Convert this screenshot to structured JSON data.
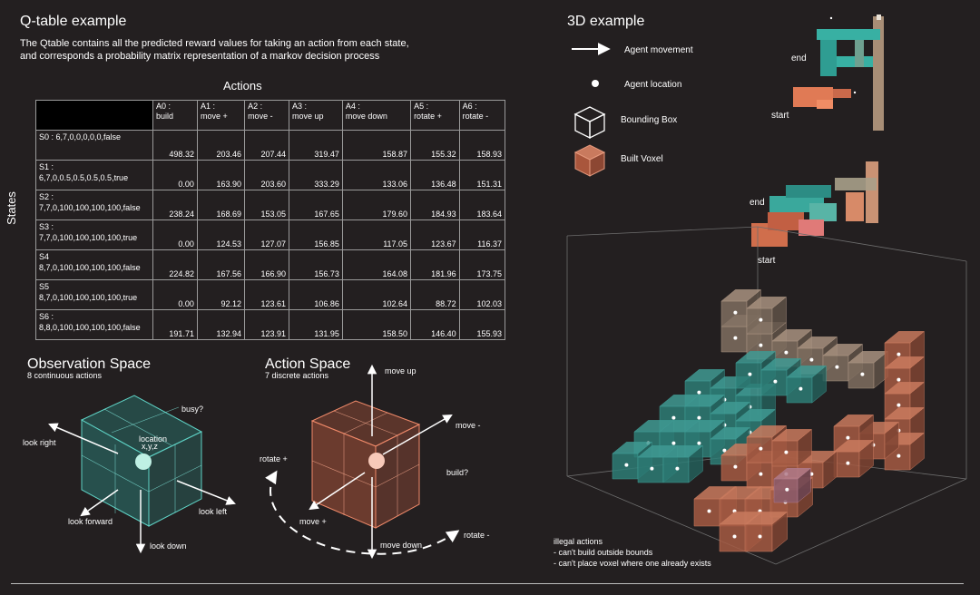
{
  "qtable": {
    "title": "Q-table example",
    "description_line1": "The Qtable contains all the predicted reward values for taking an action from each state,",
    "description_line2": "and corresponds a probability matrix representation of a markov decision process",
    "actions_label": "Actions",
    "states_label": "States",
    "columns": [
      {
        "id": "A0 :",
        "name": "build"
      },
      {
        "id": "A1 :",
        "name": "move +"
      },
      {
        "id": "A2 :",
        "name": "move -"
      },
      {
        "id": "A3 :",
        "name": "move up"
      },
      {
        "id": "A4 :",
        "name": "move down"
      },
      {
        "id": "A5 :",
        "name": "rotate +"
      },
      {
        "id": "A6 :",
        "name": "rotate -"
      }
    ],
    "rows": [
      {
        "line1": "S0 : 6,7,0,0,0,0,0,false",
        "line2": "",
        "values": [
          "498.32",
          "203.46",
          "207.44",
          "319.47",
          "158.87",
          "155.32",
          "158.93"
        ]
      },
      {
        "line1": "S1 :",
        "line2": "6,7,0,0.5,0.5,0.5,0.5,true",
        "values": [
          "0.00",
          "163.90",
          "203.60",
          "333.29",
          "133.06",
          "136.48",
          "151.31"
        ]
      },
      {
        "line1": "S2 :",
        "line2": "7,7,0,100,100,100,100,false",
        "values": [
          "238.24",
          "168.69",
          "153.05",
          "167.65",
          "179.60",
          "184.93",
          "183.64"
        ]
      },
      {
        "line1": "S3 :",
        "line2": "7,7,0,100,100,100,100,true",
        "values": [
          "0.00",
          "124.53",
          "127.07",
          "156.85",
          "117.05",
          "123.67",
          "116.37"
        ]
      },
      {
        "line1": "S4",
        "line2": "8,7,0,100,100,100,100,false",
        "values": [
          "224.82",
          "167.56",
          "166.90",
          "156.73",
          "164.08",
          "181.96",
          "173.75"
        ]
      },
      {
        "line1": "S5",
        "line2": "8,7,0,100,100,100,100,true",
        "values": [
          "0.00",
          "92.12",
          "123.61",
          "106.86",
          "102.64",
          "88.72",
          "102.03"
        ]
      },
      {
        "line1": "S6 :",
        "line2": "8,8,0,100,100,100,100,false",
        "values": [
          "191.71",
          "132.94",
          "123.91",
          "131.95",
          "158.50",
          "146.40",
          "155.93"
        ]
      }
    ]
  },
  "observation": {
    "title": "Observation Space",
    "subtitle": "8 continuous actions",
    "labels": {
      "busy": "busy?",
      "location": "location",
      "xyz": "x,y,z",
      "look_right": "look right",
      "look_forward": "look forward",
      "look_left": "look left",
      "look_down": "look down"
    }
  },
  "action": {
    "title": "Action Space",
    "subtitle": "7 discrete actions",
    "labels": {
      "move_up": "move up",
      "move_minus": "move -",
      "rotate_plus": "rotate +",
      "build": "build?",
      "move_plus": "move +",
      "move_down": "move down",
      "rotate_minus": "rotate -"
    }
  },
  "example3d": {
    "title": "3D example",
    "legend": {
      "agent_movement": "Agent movement",
      "agent_location": "Agent location",
      "bounding_box": "Bounding Box",
      "built_voxel": "Built Voxel"
    },
    "end_label": "end",
    "start_label": "start",
    "illegal_title": "illegal actions",
    "illegal_1": "- can't build outside bounds",
    "illegal_2": "- can't place voxel where one already exists"
  },
  "colors": {
    "teal": "#3a8f89",
    "terracotta": "#c56f52",
    "beige": "#b79a7f",
    "background": "#231f20"
  }
}
